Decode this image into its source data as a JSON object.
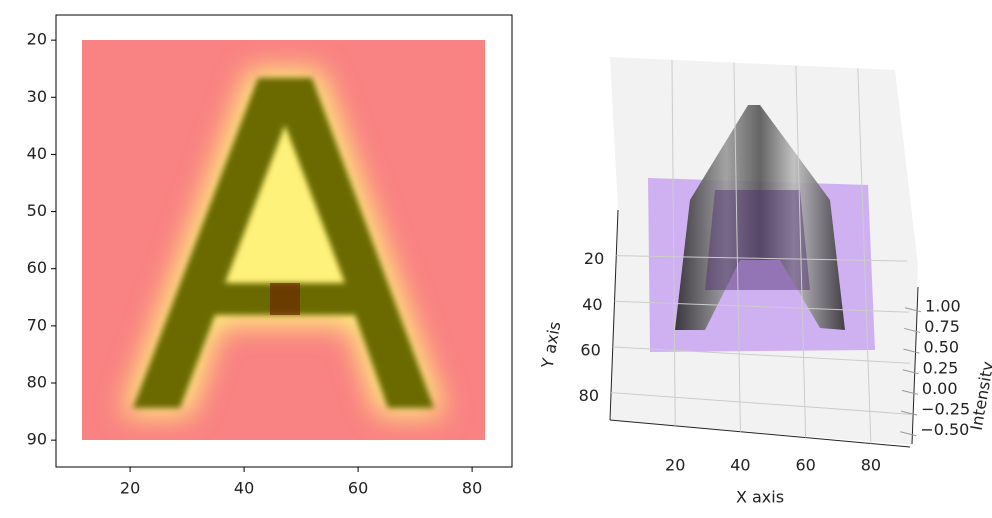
{
  "chart_data": [
    {
      "type": "image",
      "xlim": [
        7,
        87
      ],
      "ylim": [
        94.7,
        15.6
      ],
      "xticks": [
        20,
        40,
        60,
        80
      ],
      "yticks": [
        20,
        30,
        40,
        50,
        60,
        70,
        80,
        90
      ]
    },
    {
      "type": "surface3d",
      "xlabel": "X axis",
      "ylabel": "Y axis",
      "zlabel": "Intensity",
      "xlim": [
        0,
        92
      ],
      "ylim": [
        0,
        92
      ],
      "zlim": [
        -0.6,
        1.3
      ],
      "xticks": [
        20,
        40,
        60,
        80
      ],
      "yticks": [
        20,
        40,
        60,
        80
      ],
      "zticks": [
        {
          "value": -0.5,
          "label": "−0.50"
        },
        {
          "value": -0.25,
          "label": "−0.25"
        },
        {
          "value": 0,
          "label": "0.00"
        },
        {
          "value": 0.25,
          "label": "0.25"
        },
        {
          "value": 0.5,
          "label": "0.50"
        },
        {
          "value": 0.75,
          "label": "0.75"
        },
        {
          "value": 1,
          "label": "1.00"
        }
      ]
    }
  ]
}
